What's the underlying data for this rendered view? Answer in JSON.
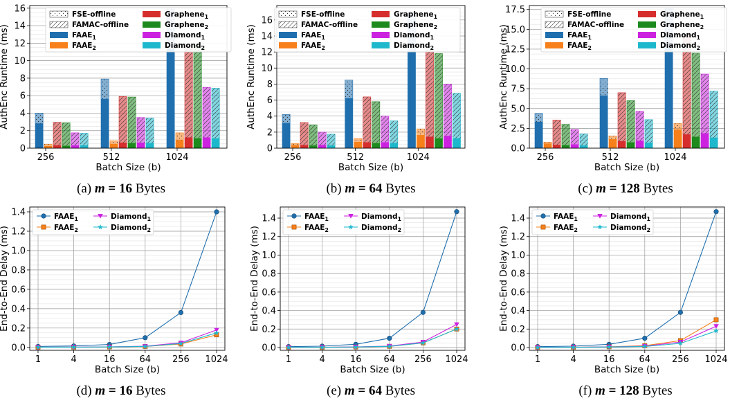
{
  "legend_top": {
    "fse": "FSE-offline",
    "famac": "FAMAC-offline",
    "faae1": "FAAE",
    "faae2": "FAAE",
    "graphene1": "Graphene",
    "graphene2": "Graphene",
    "diamond1": "Diamond",
    "diamond2": "Diamond",
    "sub1": "1",
    "sub2": "2"
  },
  "colors": {
    "faae1": "#1f6fae",
    "faae2": "#f7801a",
    "graphene1": "#d62d2d",
    "graphene2": "#1c8a1c",
    "diamond1": "#cc22e0",
    "diamond2": "#1eb8cc"
  },
  "charts": [
    {
      "id": "a",
      "type": "bar",
      "caption_pre": "(a) ",
      "caption_m": "m",
      "caption_eq": " = 16",
      "caption_post": " Bytes",
      "xlabel": "Batch Size (b)",
      "ylabel": "AuthEnc Runtime (ms)",
      "categories": [
        "256",
        "512",
        "1024"
      ],
      "ylim": [
        0,
        16.3
      ],
      "yticks": [
        0,
        2,
        4,
        6,
        8,
        10,
        12,
        14,
        16
      ],
      "ytick_labels": [
        "0",
        "2",
        "4",
        "6",
        "8",
        "10",
        "12",
        "14",
        "16"
      ],
      "series": [
        {
          "key": "faae1",
          "total": [
            4.0,
            7.9,
            15.9
          ],
          "online": [
            2.8,
            5.6,
            11.3
          ]
        },
        {
          "key": "faae2",
          "total": [
            0.45,
            0.85,
            1.75
          ],
          "online": [
            0.2,
            0.45,
            0.9
          ]
        },
        {
          "key": "graphene1",
          "total": [
            2.95,
            5.9,
            11.9
          ],
          "online": [
            0.3,
            0.6,
            1.2
          ]
        },
        {
          "key": "graphene2",
          "total": [
            2.9,
            5.85,
            11.75
          ],
          "online": [
            0.25,
            0.55,
            1.1
          ]
        },
        {
          "key": "diamond1",
          "total": [
            1.75,
            3.5,
            6.95
          ],
          "online": [
            0.3,
            0.6,
            1.2
          ]
        },
        {
          "key": "diamond2",
          "total": [
            1.7,
            3.45,
            6.85
          ],
          "online": [
            0.28,
            0.55,
            1.1
          ]
        }
      ]
    },
    {
      "id": "b",
      "type": "bar",
      "caption_pre": "(b) ",
      "caption_m": "m",
      "caption_eq": " = 64",
      "caption_post": " Bytes",
      "xlabel": "Batch Size (b)",
      "ylabel": "AuthEnc Runtime (ms)",
      "categories": [
        "256",
        "512",
        "1024"
      ],
      "ylim": [
        0,
        17.8
      ],
      "yticks": [
        0,
        2,
        4,
        6,
        8,
        10,
        12,
        14,
        16
      ],
      "ytick_labels": [
        "0",
        "2",
        "4",
        "6",
        "8",
        "10",
        "12",
        "14",
        "16"
      ],
      "series": [
        {
          "key": "faae1",
          "total": [
            4.2,
            8.5,
            17.0
          ],
          "online": [
            3.1,
            6.2,
            12.1
          ]
        },
        {
          "key": "faae2",
          "total": [
            0.6,
            1.2,
            2.4
          ],
          "online": [
            0.35,
            0.75,
            1.6
          ]
        },
        {
          "key": "graphene1",
          "total": [
            3.2,
            6.4,
            12.2
          ],
          "online": [
            0.35,
            0.7,
            1.4
          ]
        },
        {
          "key": "graphene2",
          "total": [
            2.9,
            5.8,
            11.8
          ],
          "online": [
            0.3,
            0.6,
            1.2
          ]
        },
        {
          "key": "diamond1",
          "total": [
            2.0,
            4.0,
            8.0
          ],
          "online": [
            0.35,
            0.7,
            1.5
          ]
        },
        {
          "key": "diamond2",
          "total": [
            1.75,
            3.4,
            6.85
          ],
          "online": [
            0.3,
            0.6,
            1.2
          ]
        }
      ]
    },
    {
      "id": "c",
      "type": "bar",
      "caption_pre": "(c) ",
      "caption_m": "m",
      "caption_eq": " = 128",
      "caption_post": " Bytes",
      "xlabel": "Batch Size (b)",
      "ylabel": "AuthEnc Runtime (ms)",
      "categories": [
        "256",
        "512",
        "1024"
      ],
      "ylim": [
        0,
        18.0
      ],
      "yticks": [
        0,
        2.5,
        5,
        7.5,
        10,
        12.5,
        15,
        17.5
      ],
      "ytick_labels": [
        "0.0",
        "2.5",
        "5.0",
        "7.5",
        "10.0",
        "12.5",
        "15.0",
        "17.5"
      ],
      "series": [
        {
          "key": "faae1",
          "total": [
            4.4,
            8.8,
            17.6
          ],
          "online": [
            3.3,
            6.6,
            12.7
          ]
        },
        {
          "key": "faae2",
          "total": [
            0.75,
            1.55,
            3.1
          ],
          "online": [
            0.55,
            1.1,
            2.3
          ]
        },
        {
          "key": "graphene1",
          "total": [
            3.55,
            7.0,
            14.2
          ],
          "online": [
            0.4,
            0.85,
            1.7
          ]
        },
        {
          "key": "graphene2",
          "total": [
            3.0,
            6.0,
            12.0
          ],
          "online": [
            0.35,
            0.7,
            1.4
          ]
        },
        {
          "key": "diamond1",
          "total": [
            2.35,
            4.65,
            9.35
          ],
          "online": [
            0.45,
            0.9,
            1.85
          ]
        },
        {
          "key": "diamond2",
          "total": [
            1.8,
            3.6,
            7.2
          ],
          "online": [
            0.3,
            0.65,
            1.3
          ]
        }
      ]
    },
    {
      "id": "d",
      "type": "line",
      "caption_pre": "(d) ",
      "caption_m": "m",
      "caption_eq": " = 16",
      "caption_post": " Bytes",
      "xlabel": "Batch Size (b)",
      "ylabel": "End-to-End Delay (ms)",
      "x": [
        "1",
        "4",
        "16",
        "64",
        "256",
        "1024"
      ],
      "ylim": [
        -0.03,
        1.45
      ],
      "yticks": [
        0,
        0.2,
        0.4,
        0.6,
        0.8,
        1.0,
        1.2,
        1.4
      ],
      "ytick_labels": [
        "0.0",
        "0.2",
        "0.4",
        "0.6",
        "0.8",
        "1.0",
        "1.2",
        "1.4"
      ],
      "series": [
        {
          "key": "faae1",
          "marker": "circle",
          "values": [
            0.01,
            0.015,
            0.03,
            0.1,
            0.36,
            1.4
          ]
        },
        {
          "key": "faae2",
          "marker": "square",
          "values": [
            0.002,
            0.003,
            0.005,
            0.01,
            0.035,
            0.13
          ]
        },
        {
          "key": "diamond1",
          "marker": "tri-down",
          "values": [
            0.002,
            0.003,
            0.006,
            0.012,
            0.048,
            0.18
          ]
        },
        {
          "key": "diamond2",
          "marker": "star",
          "values": [
            0.002,
            0.003,
            0.005,
            0.01,
            0.04,
            0.15
          ]
        }
      ]
    },
    {
      "id": "e",
      "type": "line",
      "caption_pre": "(e) ",
      "caption_m": "m",
      "caption_eq": " = 64",
      "caption_post": " Bytes",
      "xlabel": "Batch Size (b)",
      "ylabel": "End-to-End Delay (ms)",
      "x": [
        "1",
        "4",
        "16",
        "64",
        "256",
        "1024"
      ],
      "ylim": [
        -0.03,
        1.52
      ],
      "yticks": [
        0,
        0.2,
        0.4,
        0.6,
        0.8,
        1.0,
        1.2,
        1.4
      ],
      "ytick_labels": [
        "0.0",
        "0.2",
        "0.4",
        "0.6",
        "0.8",
        "1.0",
        "1.2",
        "1.4"
      ],
      "series": [
        {
          "key": "faae1",
          "marker": "circle",
          "values": [
            0.01,
            0.015,
            0.035,
            0.1,
            0.38,
            1.47
          ]
        },
        {
          "key": "faae2",
          "marker": "square",
          "values": [
            0.002,
            0.003,
            0.006,
            0.013,
            0.05,
            0.2
          ]
        },
        {
          "key": "diamond1",
          "marker": "tri-down",
          "values": [
            0.002,
            0.004,
            0.007,
            0.016,
            0.06,
            0.25
          ]
        },
        {
          "key": "diamond2",
          "marker": "star",
          "values": [
            0.002,
            0.003,
            0.006,
            0.013,
            0.05,
            0.2
          ]
        }
      ]
    },
    {
      "id": "f",
      "type": "line",
      "caption_pre": "(f) ",
      "caption_m": "m",
      "caption_eq": " = 128",
      "caption_post": " Bytes",
      "xlabel": "Batch Size (b)",
      "ylabel": "End-to-End Delay (ms)",
      "x": [
        "1",
        "4",
        "16",
        "64",
        "256",
        "1024"
      ],
      "ylim": [
        -0.03,
        1.52
      ],
      "yticks": [
        0,
        0.2,
        0.4,
        0.6,
        0.8,
        1.0,
        1.2,
        1.4
      ],
      "ytick_labels": [
        "0.0",
        "0.2",
        "0.4",
        "0.6",
        "0.8",
        "1.0",
        "1.2",
        "1.4"
      ],
      "series": [
        {
          "key": "faae1",
          "marker": "circle",
          "values": [
            0.01,
            0.015,
            0.035,
            0.1,
            0.38,
            1.47
          ]
        },
        {
          "key": "faae2",
          "marker": "square",
          "values": [
            0.003,
            0.004,
            0.008,
            0.02,
            0.075,
            0.3
          ]
        },
        {
          "key": "diamond1",
          "marker": "tri-down",
          "values": [
            0.002,
            0.004,
            0.007,
            0.015,
            0.06,
            0.23
          ]
        },
        {
          "key": "diamond2",
          "marker": "star",
          "values": [
            0.002,
            0.003,
            0.006,
            0.012,
            0.045,
            0.18
          ]
        }
      ]
    }
  ]
}
